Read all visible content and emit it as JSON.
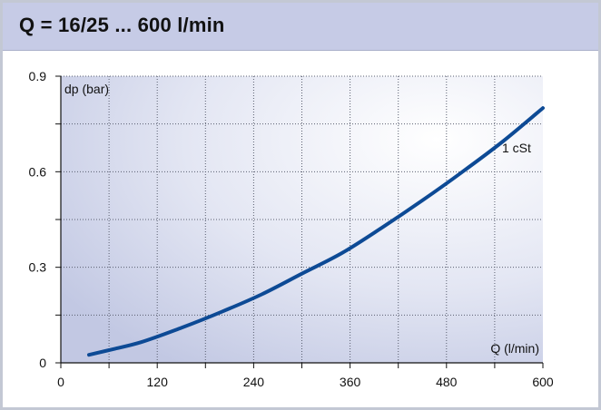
{
  "header": {
    "title": "Q = 16/25 ... 600 l/min"
  },
  "chart_data": {
    "type": "line",
    "title": "Q = 16/25 ... 600 l/min",
    "xlabel": "Q (l/min)",
    "ylabel": "dp (bar)",
    "xlim": [
      0,
      600
    ],
    "ylim": [
      0,
      0.9
    ],
    "x_ticks": [
      0,
      120,
      240,
      360,
      480,
      600
    ],
    "y_ticks": [
      0,
      0.3,
      0.6,
      0.9
    ],
    "x_tick_labels": [
      "0",
      "120",
      "240",
      "360",
      "480",
      "600"
    ],
    "y_tick_labels": [
      "0",
      "0.3",
      "0.6",
      "0.9"
    ],
    "grid": true,
    "series": [
      {
        "name": "1 cSt",
        "color": "#0d4a95",
        "x": [
          35,
          60,
          100,
          150,
          200,
          250,
          300,
          350,
          400,
          450,
          500,
          550,
          600
        ],
        "y": [
          0.025,
          0.04,
          0.065,
          0.11,
          0.16,
          0.215,
          0.28,
          0.345,
          0.425,
          0.51,
          0.6,
          0.695,
          0.8
        ]
      }
    ]
  }
}
